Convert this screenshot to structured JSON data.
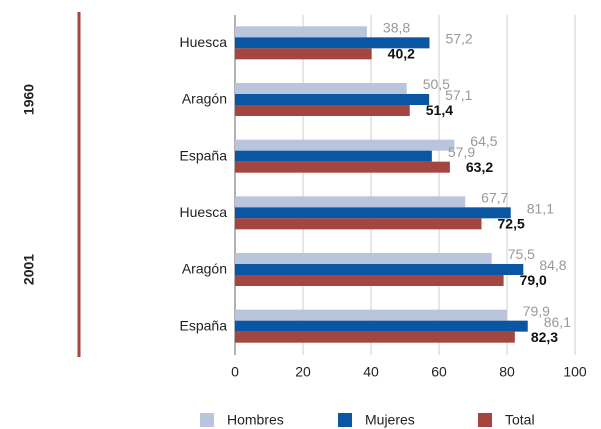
{
  "chart_data": {
    "type": "bar",
    "orientation": "horizontal",
    "groups": [
      "1960",
      "2001"
    ],
    "categories": [
      "Huesca",
      "Aragón",
      "España",
      "Huesca",
      "Aragón",
      "España"
    ],
    "series": [
      {
        "name": "Hombres",
        "color": "#b8c5dd",
        "values": [
          38.8,
          50.5,
          64.5,
          67.7,
          75.5,
          79.9
        ],
        "value_labels": [
          "38,8",
          "50,5",
          "64,5",
          "67,7",
          "75,5",
          "79,9"
        ]
      },
      {
        "name": "Mujeres",
        "color": "#0b56a3",
        "values": [
          57.2,
          57.1,
          57.9,
          81.1,
          84.8,
          86.1
        ],
        "value_labels": [
          "57,2",
          "57,1",
          "57,9",
          "81,1",
          "84,8",
          "86,1"
        ]
      },
      {
        "name": "Total",
        "color": "#a4463f",
        "values": [
          40.2,
          51.4,
          63.2,
          72.5,
          79.0,
          82.3
        ],
        "value_labels": [
          "40,2",
          "51,4",
          "63,2",
          "72,5",
          "79,0",
          "82,3"
        ]
      }
    ],
    "xlim": [
      0,
      100
    ],
    "xticks": [
      0,
      20,
      40,
      60,
      80,
      100
    ],
    "grid": true
  }
}
